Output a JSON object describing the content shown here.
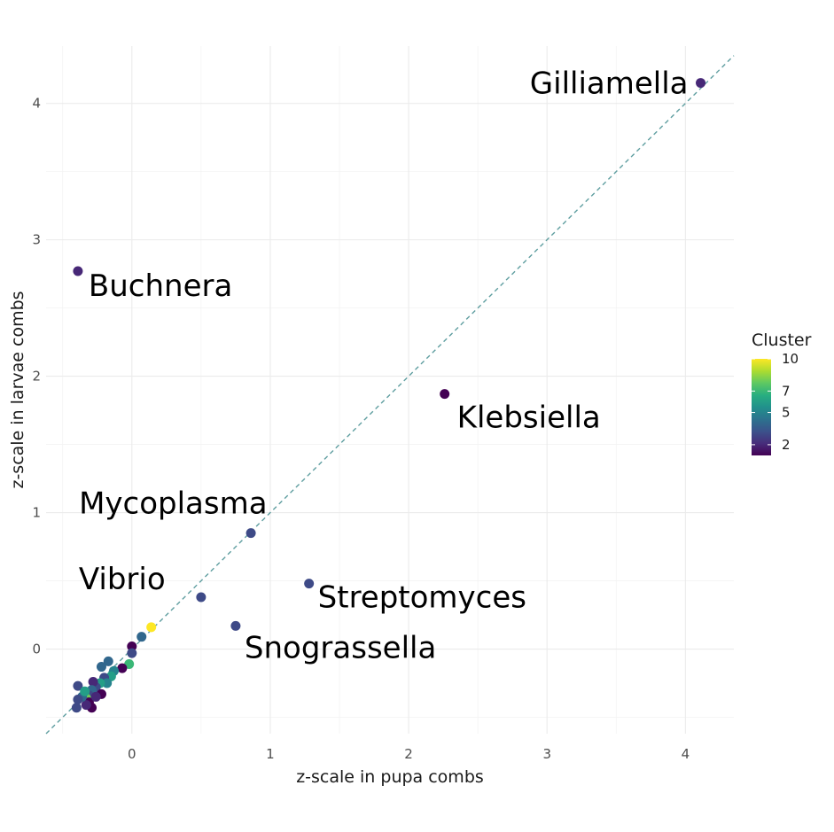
{
  "chart_data": {
    "type": "scatter",
    "title": "",
    "xlabel": "z-scale in pupa combs",
    "ylabel": "z-scale in larvae combs",
    "xlim": [
      -0.62,
      4.35
    ],
    "ylim": [
      -0.62,
      4.42
    ],
    "x_ticks": [
      0,
      1,
      2,
      3,
      4
    ],
    "y_ticks": [
      0,
      1,
      2,
      3,
      4
    ],
    "grid": true,
    "reference_line": {
      "type": "identity",
      "style": "dashed",
      "color": "#5f9ea0"
    },
    "color_scale": {
      "title": "Cluster",
      "min": 1,
      "max": 10,
      "ticks": [
        2,
        5,
        7,
        10
      ],
      "palette": [
        "#440154",
        "#472d7b",
        "#3b528b",
        "#2c728e",
        "#21918c",
        "#28ae80",
        "#5ec962",
        "#addc30",
        "#fde725"
      ],
      "legend_position": "right"
    },
    "labeled_points": [
      {
        "label": "Gilliamella",
        "x": 4.11,
        "y": 4.15,
        "cluster": 2
      },
      {
        "label": "Buchnera",
        "x": -0.39,
        "y": 2.77,
        "cluster": 2
      },
      {
        "label": "Klebsiella",
        "x": 2.26,
        "y": 1.87,
        "cluster": 1
      },
      {
        "label": "Mycoplasma",
        "x": 0.86,
        "y": 0.85,
        "cluster": 3
      },
      {
        "label": "Vibrio",
        "x": 0.5,
        "y": 0.38,
        "cluster": 3
      },
      {
        "label": "Streptomyces",
        "x": 1.28,
        "y": 0.48,
        "cluster": 3
      },
      {
        "label": "Snograssella",
        "x": 0.75,
        "y": 0.17,
        "cluster": 3
      }
    ],
    "other_points": [
      {
        "x": 0.14,
        "y": 0.16,
        "cluster": 10
      },
      {
        "x": 0.07,
        "y": 0.09,
        "cluster": 4
      },
      {
        "x": 0.0,
        "y": 0.02,
        "cluster": 1
      },
      {
        "x": 0.0,
        "y": -0.03,
        "cluster": 3
      },
      {
        "x": -0.02,
        "y": -0.11,
        "cluster": 7
      },
      {
        "x": -0.07,
        "y": -0.14,
        "cluster": 1
      },
      {
        "x": -0.17,
        "y": -0.09,
        "cluster": 4
      },
      {
        "x": -0.13,
        "y": -0.16,
        "cluster": 5
      },
      {
        "x": -0.15,
        "y": -0.2,
        "cluster": 6
      },
      {
        "x": -0.2,
        "y": -0.21,
        "cluster": 3
      },
      {
        "x": -0.22,
        "y": -0.13,
        "cluster": 4
      },
      {
        "x": -0.18,
        "y": -0.25,
        "cluster": 5
      },
      {
        "x": -0.23,
        "y": -0.25,
        "cluster": 6
      },
      {
        "x": -0.26,
        "y": -0.28,
        "cluster": 3
      },
      {
        "x": -0.22,
        "y": -0.33,
        "cluster": 1
      },
      {
        "x": -0.28,
        "y": -0.24,
        "cluster": 2
      },
      {
        "x": -0.29,
        "y": -0.3,
        "cluster": 4
      },
      {
        "x": -0.31,
        "y": -0.34,
        "cluster": 3
      },
      {
        "x": -0.33,
        "y": -0.36,
        "cluster": 8
      },
      {
        "x": -0.31,
        "y": -0.39,
        "cluster": 1
      },
      {
        "x": -0.29,
        "y": -0.43,
        "cluster": 1
      },
      {
        "x": -0.33,
        "y": -0.41,
        "cluster": 2
      },
      {
        "x": -0.36,
        "y": -0.35,
        "cluster": 4
      },
      {
        "x": -0.39,
        "y": -0.27,
        "cluster": 3
      },
      {
        "x": -0.39,
        "y": -0.37,
        "cluster": 3
      },
      {
        "x": -0.4,
        "y": -0.43,
        "cluster": 3
      },
      {
        "x": -0.34,
        "y": -0.31,
        "cluster": 6
      },
      {
        "x": -0.26,
        "y": -0.35,
        "cluster": 2
      }
    ]
  }
}
